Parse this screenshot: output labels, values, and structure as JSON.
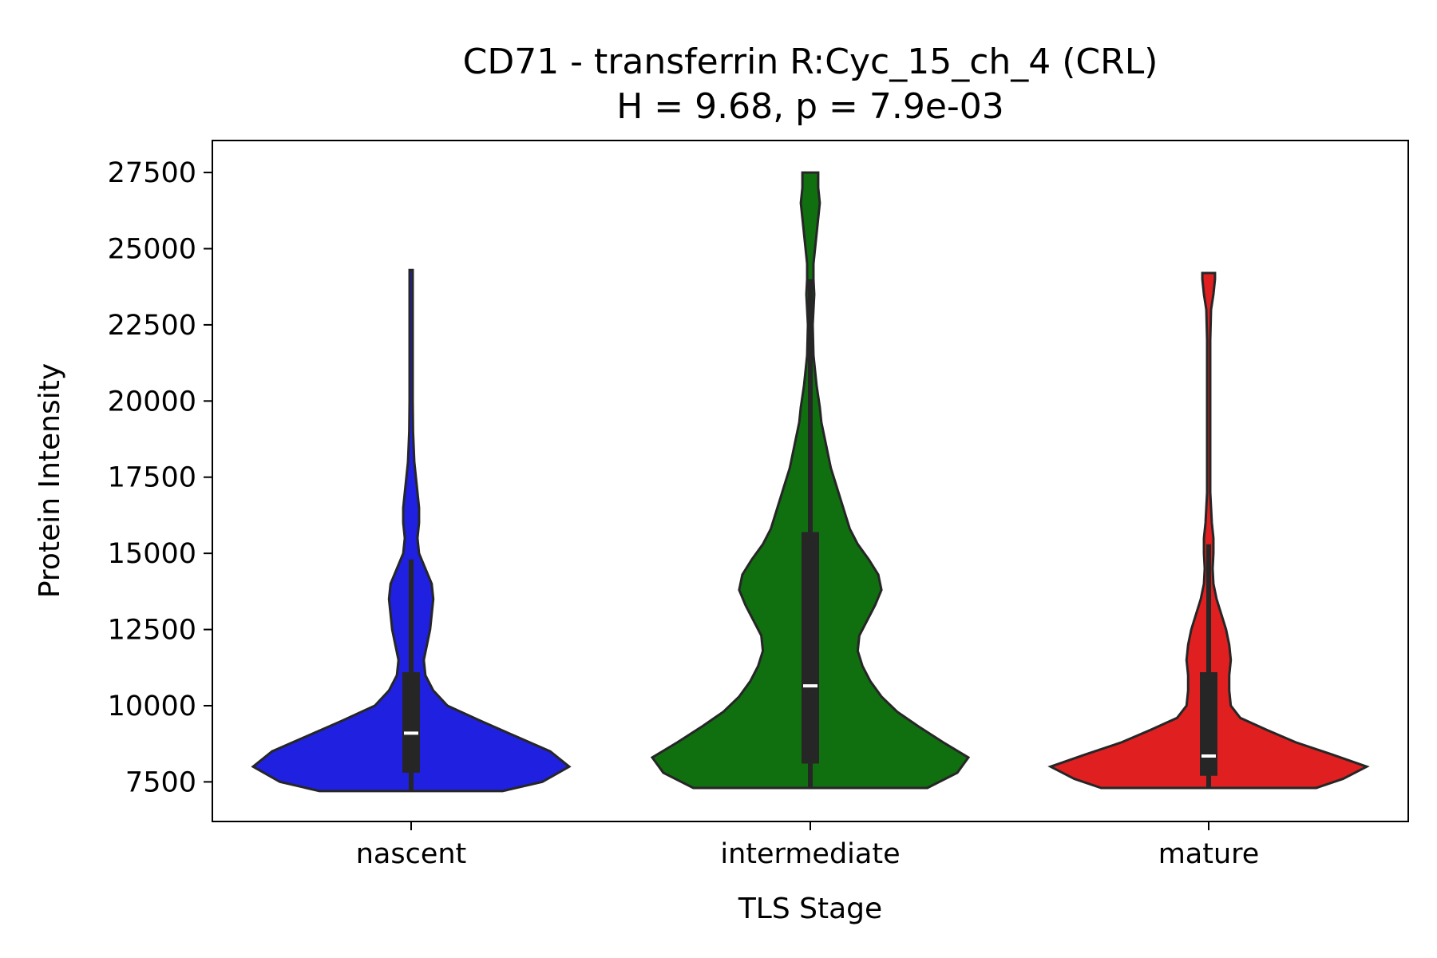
{
  "chart_data": {
    "type": "violin",
    "title": "CD71 - transferrin R:Cyc_15_ch_4 (CRL)",
    "subtitle": "H = 9.68, p = 7.9e-03",
    "xlabel": "TLS Stage",
    "ylabel": "Protein Intensity",
    "ylim": [
      6200,
      28550
    ],
    "yticks": [
      7500,
      10000,
      12500,
      15000,
      17500,
      20000,
      22500,
      25000,
      27500
    ],
    "grid": false,
    "categories": [
      "nascent",
      "intermediate",
      "mature"
    ],
    "colors": [
      "#2020e0",
      "#107010",
      "#e02020"
    ],
    "series": [
      {
        "category": "nascent",
        "min": 7200,
        "q1": 7800,
        "median": 9100,
        "q3": 11100,
        "max": 24300,
        "whisker_low": 7200,
        "whisker_high": 14800,
        "profile": [
          [
            7200,
            0.58
          ],
          [
            7500,
            0.83
          ],
          [
            8000,
            1.0
          ],
          [
            8500,
            0.88
          ],
          [
            9000,
            0.66
          ],
          [
            9500,
            0.44
          ],
          [
            10000,
            0.23
          ],
          [
            10500,
            0.14
          ],
          [
            11000,
            0.09
          ],
          [
            11500,
            0.08
          ],
          [
            12000,
            0.1
          ],
          [
            12500,
            0.12
          ],
          [
            13000,
            0.13
          ],
          [
            13500,
            0.14
          ],
          [
            14000,
            0.13
          ],
          [
            14500,
            0.09
          ],
          [
            15000,
            0.05
          ],
          [
            15500,
            0.04
          ],
          [
            16000,
            0.05
          ],
          [
            16500,
            0.05
          ],
          [
            17000,
            0.04
          ],
          [
            17500,
            0.03
          ],
          [
            18000,
            0.02
          ],
          [
            19000,
            0.012
          ],
          [
            20000,
            0.01
          ],
          [
            21000,
            0.01
          ],
          [
            22000,
            0.01
          ],
          [
            23000,
            0.01
          ],
          [
            23800,
            0.01
          ],
          [
            24300,
            0.01
          ]
        ]
      },
      {
        "category": "intermediate",
        "min": 7300,
        "q1": 8100,
        "median": 10650,
        "q3": 15700,
        "max": 27500,
        "whisker_low": 7300,
        "whisker_high": 24000,
        "profile": [
          [
            7300,
            0.74
          ],
          [
            7800,
            0.93
          ],
          [
            8300,
            1.0
          ],
          [
            8800,
            0.84
          ],
          [
            9300,
            0.69
          ],
          [
            9800,
            0.55
          ],
          [
            10300,
            0.45
          ],
          [
            10800,
            0.38
          ],
          [
            11300,
            0.33
          ],
          [
            11800,
            0.3
          ],
          [
            12300,
            0.31
          ],
          [
            12800,
            0.36
          ],
          [
            13300,
            0.41
          ],
          [
            13800,
            0.45
          ],
          [
            14300,
            0.43
          ],
          [
            14800,
            0.37
          ],
          [
            15300,
            0.3
          ],
          [
            15800,
            0.25
          ],
          [
            16300,
            0.22
          ],
          [
            16800,
            0.19
          ],
          [
            17300,
            0.16
          ],
          [
            17800,
            0.13
          ],
          [
            18300,
            0.11
          ],
          [
            18800,
            0.09
          ],
          [
            19300,
            0.07
          ],
          [
            19800,
            0.06
          ],
          [
            20500,
            0.04
          ],
          [
            21500,
            0.02
          ],
          [
            22500,
            0.015
          ],
          [
            23000,
            0.02
          ],
          [
            23500,
            0.025
          ],
          [
            24000,
            0.02
          ],
          [
            24500,
            0.02
          ],
          [
            25000,
            0.03
          ],
          [
            25500,
            0.04
          ],
          [
            26000,
            0.05
          ],
          [
            26500,
            0.06
          ],
          [
            27000,
            0.05
          ],
          [
            27500,
            0.05
          ]
        ]
      },
      {
        "category": "mature",
        "min": 7300,
        "q1": 7700,
        "median": 8350,
        "q3": 11100,
        "max": 24200,
        "whisker_low": 7300,
        "whisker_high": 15300,
        "profile": [
          [
            7300,
            0.68
          ],
          [
            7600,
            0.85
          ],
          [
            8000,
            1.0
          ],
          [
            8400,
            0.78
          ],
          [
            8800,
            0.55
          ],
          [
            9200,
            0.37
          ],
          [
            9600,
            0.2
          ],
          [
            10000,
            0.14
          ],
          [
            10500,
            0.13
          ],
          [
            11000,
            0.13
          ],
          [
            11500,
            0.14
          ],
          [
            12000,
            0.13
          ],
          [
            12500,
            0.11
          ],
          [
            13000,
            0.08
          ],
          [
            13500,
            0.05
          ],
          [
            14000,
            0.03
          ],
          [
            14500,
            0.025
          ],
          [
            15000,
            0.03
          ],
          [
            15500,
            0.03
          ],
          [
            16000,
            0.02
          ],
          [
            16500,
            0.015
          ],
          [
            17000,
            0.01
          ],
          [
            18000,
            0.01
          ],
          [
            20000,
            0.01
          ],
          [
            22000,
            0.01
          ],
          [
            23000,
            0.015
          ],
          [
            23500,
            0.03
          ],
          [
            24000,
            0.04
          ],
          [
            24200,
            0.04
          ]
        ]
      }
    ]
  }
}
